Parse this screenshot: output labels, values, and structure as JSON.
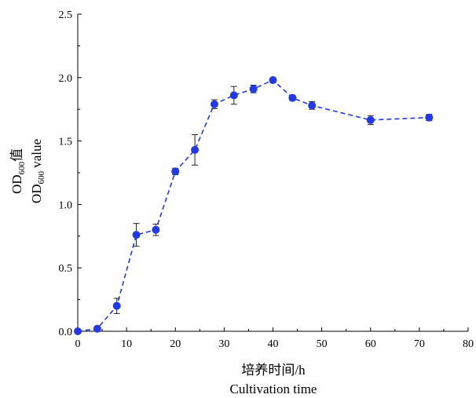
{
  "chart_data": {
    "type": "scatter",
    "xlabel_cn": "培养时间/h",
    "xlabel_en": "Cultivation time",
    "ylabel_cn": {
      "base": "OD",
      "sub": "600",
      "suffix": "值"
    },
    "ylabel_en": {
      "base": "OD",
      "sub": "600",
      "suffix": " value"
    },
    "xlim": [
      0,
      80
    ],
    "ylim": [
      0,
      2.5
    ],
    "x_ticks": [
      "0",
      "10",
      "20",
      "30",
      "40",
      "50",
      "60",
      "70",
      "80"
    ],
    "y_ticks": [
      "0.0",
      "0.5",
      "1.0",
      "1.5",
      "2.0",
      "2.5"
    ],
    "grid": false,
    "series": [
      {
        "color": "#2239e8",
        "line_style": "dashed",
        "x": [
          0,
          4,
          8,
          12,
          16,
          20,
          24,
          28,
          32,
          36,
          40,
          44,
          48,
          60,
          72
        ],
        "y": [
          0.0,
          0.02,
          0.2,
          0.76,
          0.8,
          1.26,
          1.43,
          1.79,
          1.86,
          1.91,
          1.98,
          1.84,
          1.78,
          1.665,
          1.685
        ],
        "error": [
          0.0,
          0.0,
          0.06,
          0.09,
          0.045,
          0.025,
          0.12,
          0.035,
          0.07,
          0.03,
          0.015,
          0.02,
          0.03,
          0.035,
          0.025
        ]
      }
    ]
  }
}
